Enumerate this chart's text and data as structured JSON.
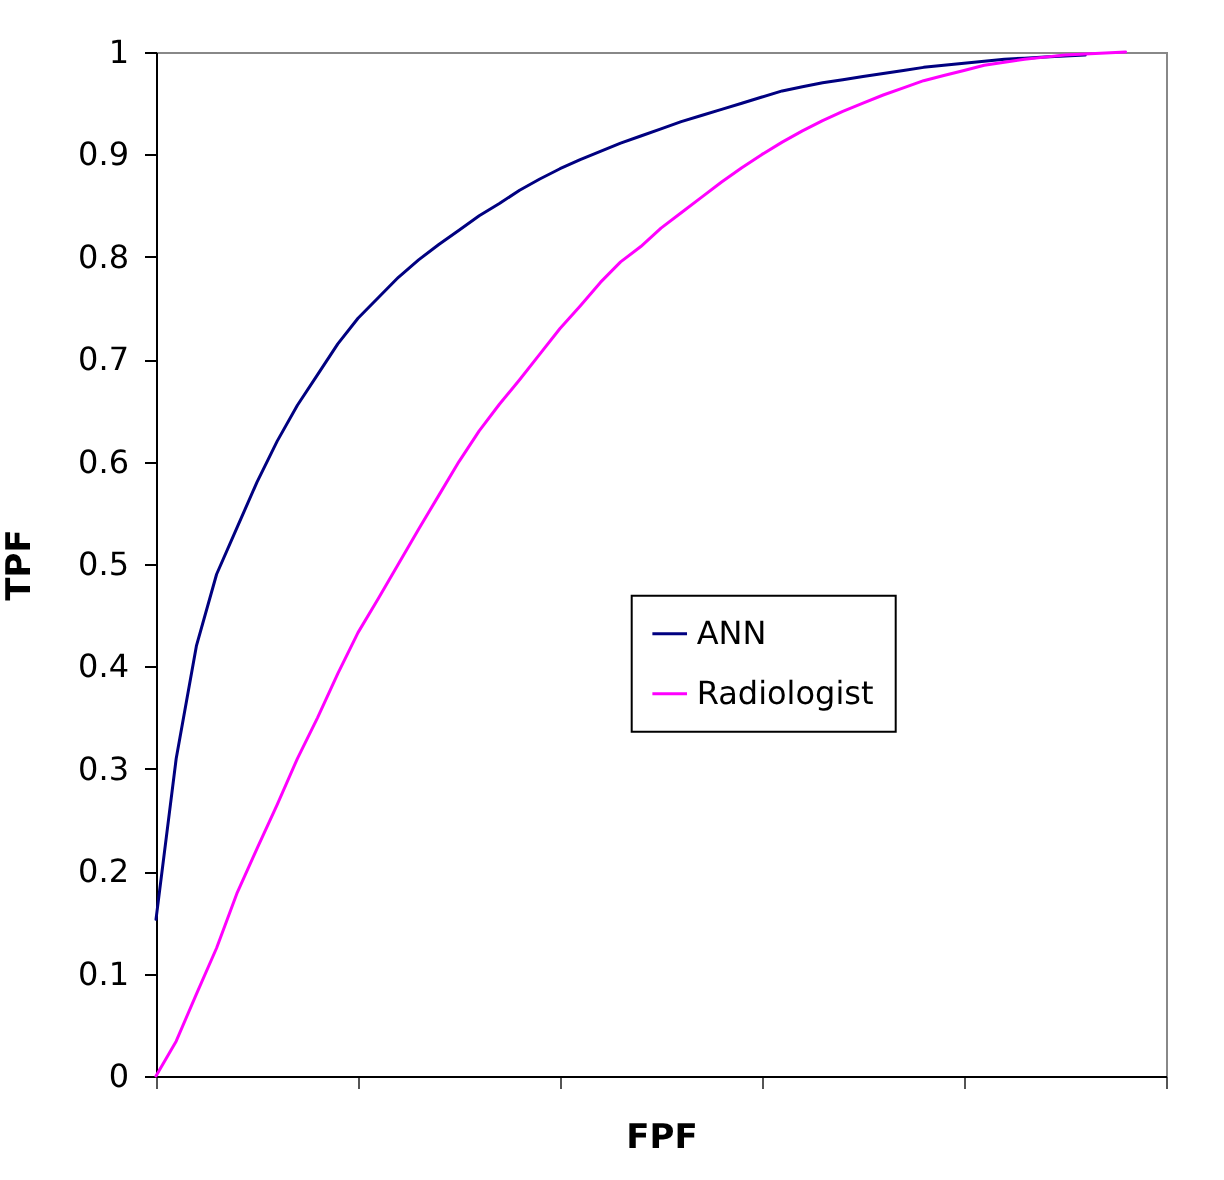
{
  "chart_data": {
    "type": "line",
    "xlabel": "FPF",
    "ylabel": "TPF",
    "categories": [
      null,
      null,
      null,
      null,
      null,
      null,
      null,
      null,
      null,
      null,
      null,
      null,
      null,
      null,
      null,
      null,
      null,
      null,
      null,
      null,
      null,
      null,
      null,
      null,
      null,
      null,
      null,
      null,
      null,
      null,
      null,
      null,
      null,
      null,
      null,
      null,
      null,
      null,
      null,
      null,
      null,
      null,
      null,
      null,
      null,
      null,
      null,
      null,
      null,
      null,
      null
    ],
    "series": [
      {
        "name": "ANN",
        "color": "#000080",
        "values": [
          0.153,
          0.31,
          0.42,
          0.49,
          0.535,
          0.58,
          0.62,
          0.655,
          0.685,
          0.715,
          0.74,
          0.76,
          0.78,
          0.797,
          0.812,
          0.826,
          0.84,
          0.852,
          0.865,
          0.876,
          0.886,
          0.895,
          0.903,
          0.911,
          0.918,
          0.925,
          0.932,
          0.938,
          0.944,
          0.95,
          0.956,
          0.962,
          0.966,
          0.97,
          0.973,
          0.976,
          0.979,
          0.982,
          0.985,
          0.987,
          0.989,
          0.991,
          0.993,
          0.994,
          0.995,
          0.996,
          0.997,
          null,
          null,
          null,
          null
        ]
      },
      {
        "name": "Radiologist",
        "color": "#ff00ff",
        "values": [
          0,
          0.034,
          0.08,
          0.125,
          0.178,
          0.222,
          0.265,
          0.31,
          0.35,
          0.393,
          0.433,
          0.466,
          0.5,
          0.534,
          0.567,
          0.6,
          0.63,
          0.656,
          0.68,
          0.705,
          0.73,
          0.752,
          0.775,
          0.795,
          0.81,
          0.828,
          0.843,
          0.858,
          0.873,
          0.887,
          0.9,
          0.912,
          0.923,
          0.933,
          0.942,
          0.95,
          0.958,
          0.965,
          0.972,
          0.977,
          0.982,
          0.987,
          0.99,
          0.993,
          0.995,
          0.997,
          0.998,
          0.999,
          1,
          null,
          null
        ]
      }
    ],
    "ylim": [
      0,
      1
    ],
    "yticks": [
      0,
      0.1,
      0.2,
      0.3,
      0.4,
      0.5,
      0.6,
      0.7,
      0.8,
      0.9,
      1
    ],
    "tick_labels": "y",
    "legend": "right",
    "marker": "none",
    "line_style": "solid"
  }
}
